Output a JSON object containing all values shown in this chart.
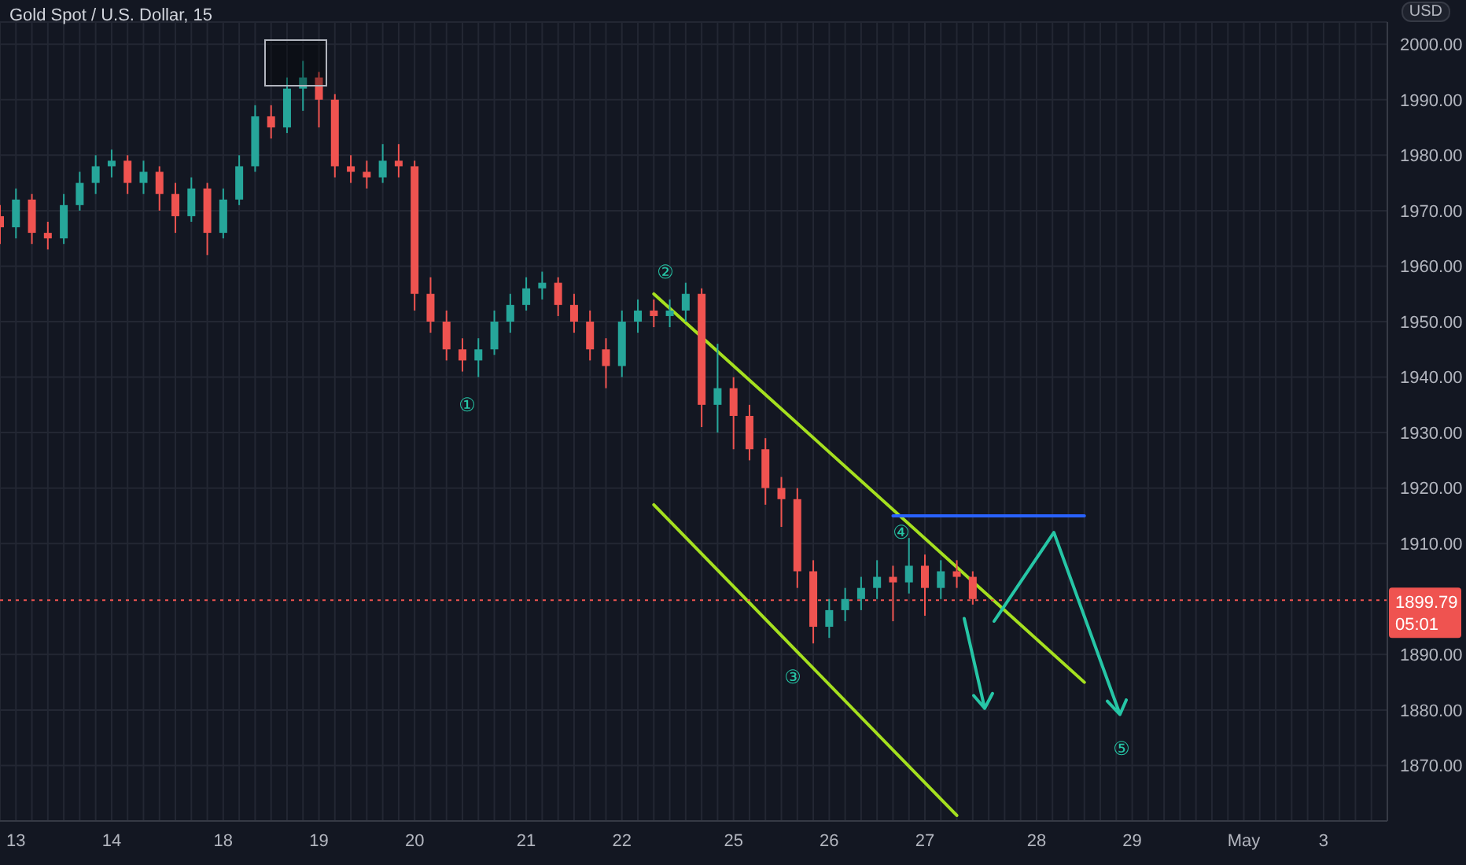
{
  "chart_data": {
    "type": "candlestick",
    "title": "Gold Spot / U.S. Dollar, 15",
    "ylabel": "USD",
    "categories": [
      null,
      "13",
      null,
      null,
      null,
      null,
      null,
      "14",
      null,
      null,
      null,
      null,
      null,
      null,
      "18",
      null,
      null,
      null,
      null,
      null,
      "19",
      null,
      null,
      null,
      null,
      null,
      "20",
      null,
      null,
      null,
      null,
      null,
      null,
      "21",
      null,
      null,
      null,
      null,
      null,
      "22",
      null,
      null,
      null,
      null,
      null,
      null,
      "25",
      null,
      null,
      null,
      null,
      null,
      "26",
      null,
      null,
      null,
      null,
      null,
      "27",
      null,
      null,
      null,
      null,
      null,
      null,
      "28",
      null,
      null,
      null,
      null,
      null,
      "29",
      null,
      null,
      null,
      null,
      null,
      null,
      "May",
      null,
      null,
      null,
      null,
      "3",
      null,
      null,
      null,
      null
    ],
    "ohlc": [
      [
        1969,
        1971,
        1964,
        1967
      ],
      [
        1967,
        1974,
        1965,
        1972
      ],
      [
        1972,
        1973,
        1964,
        1966
      ],
      [
        1966,
        1968,
        1963,
        1965
      ],
      [
        1965,
        1973,
        1964,
        1971
      ],
      [
        1971,
        1977,
        1970,
        1975
      ],
      [
        1975,
        1980,
        1973,
        1978
      ],
      [
        1978,
        1981,
        1976,
        1979
      ],
      [
        1979,
        1980,
        1973,
        1975
      ],
      [
        1975,
        1979,
        1973,
        1977
      ],
      [
        1977,
        1978,
        1970,
        1973
      ],
      [
        1973,
        1975,
        1966,
        1969
      ],
      [
        1969,
        1976,
        1968,
        1974
      ],
      [
        1974,
        1975,
        1962,
        1966
      ],
      [
        1966,
        1974,
        1965,
        1972
      ],
      [
        1972,
        1980,
        1971,
        1978
      ],
      [
        1978,
        1989,
        1977,
        1987
      ],
      [
        1987,
        1989,
        1983,
        1985
      ],
      [
        1985,
        1994,
        1984,
        1992
      ],
      [
        1992,
        1997,
        1988,
        1994
      ],
      [
        1994,
        1995,
        1985,
        1990
      ],
      [
        1990,
        1991,
        1976,
        1978
      ],
      [
        1978,
        1980,
        1975,
        1977
      ],
      [
        1977,
        1979,
        1974,
        1976
      ],
      [
        1976,
        1982,
        1975,
        1979
      ],
      [
        1979,
        1982,
        1976,
        1978
      ],
      [
        1978,
        1979,
        1952,
        1955
      ],
      [
        1955,
        1958,
        1948,
        1950
      ],
      [
        1950,
        1952,
        1943,
        1945
      ],
      [
        1945,
        1947,
        1941,
        1943
      ],
      [
        1943,
        1947,
        1940,
        1945
      ],
      [
        1945,
        1952,
        1944,
        1950
      ],
      [
        1950,
        1955,
        1948,
        1953
      ],
      [
        1953,
        1958,
        1952,
        1956
      ],
      [
        1956,
        1959,
        1954,
        1957
      ],
      [
        1957,
        1958,
        1951,
        1953
      ],
      [
        1953,
        1955,
        1948,
        1950
      ],
      [
        1950,
        1952,
        1943,
        1945
      ],
      [
        1945,
        1947,
        1938,
        1942
      ],
      [
        1942,
        1952,
        1940,
        1950
      ],
      [
        1950,
        1954,
        1948,
        1952
      ],
      [
        1952,
        1954,
        1949,
        1951
      ],
      [
        1951,
        1954,
        1949,
        1952
      ],
      [
        1952,
        1957,
        1950,
        1955
      ],
      [
        1955,
        1956,
        1931,
        1935
      ],
      [
        1935,
        1946,
        1930,
        1938
      ],
      [
        1938,
        1940,
        1927,
        1933
      ],
      [
        1933,
        1935,
        1925,
        1927
      ],
      [
        1927,
        1929,
        1917,
        1920
      ],
      [
        1920,
        1922,
        1913,
        1918
      ],
      [
        1918,
        1920,
        1902,
        1905
      ],
      [
        1905,
        1907,
        1892,
        1895
      ],
      [
        1895,
        1900,
        1893,
        1898
      ],
      [
        1898,
        1902,
        1896,
        1900
      ],
      [
        1900,
        1904,
        1898,
        1902
      ],
      [
        1902,
        1907,
        1900,
        1904
      ],
      [
        1904,
        1906,
        1896,
        1903
      ],
      [
        1903,
        1911,
        1901,
        1906
      ],
      [
        1906,
        1908,
        1897,
        1902
      ],
      [
        1902,
        1907,
        1900,
        1905
      ],
      [
        1905,
        1907,
        1902,
        1904
      ],
      [
        1904,
        1905,
        1899,
        1900
      ],
      null,
      null,
      null,
      null,
      null,
      null,
      null,
      null,
      null,
      null,
      null,
      null,
      null,
      null,
      null,
      null,
      null,
      null,
      null,
      null,
      null,
      null,
      null,
      null,
      null,
      null
    ],
    "series": [
      {
        "type": "line",
        "color": "#a5e01f",
        "values": [
          null,
          null,
          null,
          null,
          null,
          null,
          null,
          null,
          null,
          null,
          null,
          null,
          null,
          null,
          null,
          null,
          null,
          null,
          null,
          null,
          null,
          null,
          null,
          null,
          null,
          null,
          null,
          null,
          null,
          null,
          null,
          null,
          null,
          null,
          null,
          null,
          null,
          null,
          null,
          null,
          null,
          1955,
          null,
          null,
          null,
          null,
          null,
          null,
          null,
          null,
          null,
          null,
          null,
          null,
          null,
          null,
          null,
          null,
          null,
          null,
          null,
          null,
          null,
          null,
          null,
          null,
          null,
          null,
          1885,
          null,
          null,
          null,
          null,
          null,
          null,
          null,
          null,
          null,
          null,
          null,
          null,
          null,
          null,
          null,
          null,
          null,
          null,
          null
        ]
      },
      {
        "type": "line",
        "color": "#a5e01f",
        "values": [
          null,
          null,
          null,
          null,
          null,
          null,
          null,
          null,
          null,
          null,
          null,
          null,
          null,
          null,
          null,
          null,
          null,
          null,
          null,
          null,
          null,
          null,
          null,
          null,
          null,
          null,
          null,
          null,
          null,
          null,
          null,
          null,
          null,
          null,
          null,
          null,
          null,
          null,
          null,
          null,
          null,
          1917,
          null,
          null,
          null,
          null,
          null,
          null,
          null,
          null,
          null,
          null,
          null,
          null,
          null,
          null,
          null,
          null,
          null,
          null,
          1861,
          null,
          null,
          null,
          null,
          null,
          null,
          null,
          null,
          null,
          null,
          null,
          null,
          null,
          null,
          null,
          null,
          null,
          null,
          null,
          null,
          null,
          null,
          null,
          null,
          null,
          null,
          null
        ]
      },
      {
        "type": "line",
        "color": "#2962ff",
        "values": [
          null,
          null,
          null,
          null,
          null,
          null,
          null,
          null,
          null,
          null,
          null,
          null,
          null,
          null,
          null,
          null,
          null,
          null,
          null,
          null,
          null,
          null,
          null,
          null,
          null,
          null,
          null,
          null,
          null,
          null,
          null,
          null,
          null,
          null,
          null,
          null,
          null,
          null,
          null,
          null,
          null,
          null,
          null,
          null,
          null,
          null,
          null,
          null,
          null,
          null,
          null,
          null,
          null,
          null,
          null,
          null,
          1915,
          null,
          null,
          null,
          null,
          null,
          null,
          null,
          null,
          null,
          null,
          null,
          1915,
          null,
          null,
          null,
          null,
          null,
          null,
          null,
          null,
          null,
          null,
          null,
          null,
          null,
          null,
          null,
          null,
          null,
          null,
          null
        ]
      }
    ],
    "ylim": [
      1860,
      2004
    ],
    "yticks": [
      {
        "value": 1870,
        "label": "1870.00"
      },
      {
        "value": 1880,
        "label": "1880.00"
      },
      {
        "value": 1890,
        "label": "1890.00"
      },
      {
        "value": 1910,
        "label": "1910.00"
      },
      {
        "value": 1920,
        "label": "1920.00"
      },
      {
        "value": 1930,
        "label": "1930.00"
      },
      {
        "value": 1940,
        "label": "1940.00"
      },
      {
        "value": 1950,
        "label": "1950.00"
      },
      {
        "value": 1960,
        "label": "1960.00"
      },
      {
        "value": 1970,
        "label": "1970.00"
      },
      {
        "value": 1980,
        "label": "1980.00"
      },
      {
        "value": 1990,
        "label": "1990.00"
      },
      {
        "value": 2000,
        "label": "2000.00"
      }
    ],
    "ref_lines": [
      {
        "axis": "y",
        "value": 1899.79,
        "label": "1899.79",
        "color": "#ef5350",
        "line_style": "dotted"
      }
    ],
    "annotations": [
      "05:01",
      "①",
      "②",
      "③",
      "④",
      "⑤"
    ],
    "grid": true,
    "marker": "none",
    "line_style": "solid"
  }
}
